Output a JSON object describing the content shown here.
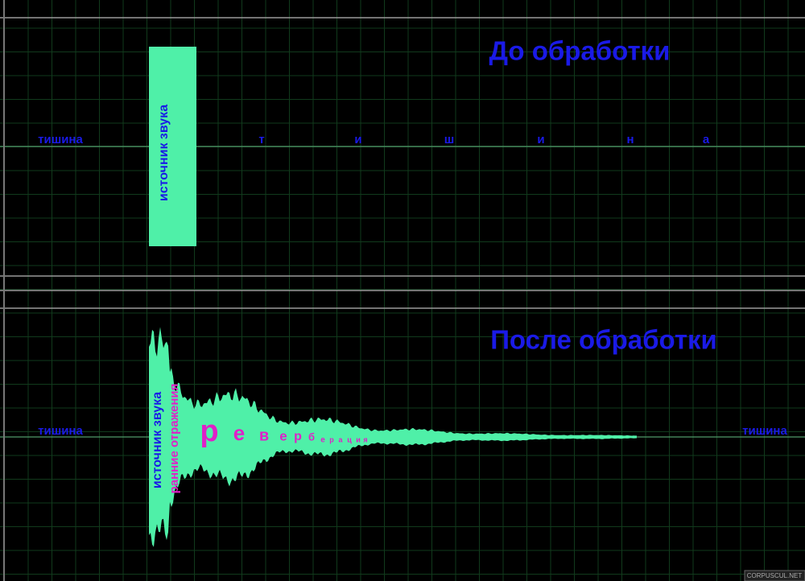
{
  "top_panel": {
    "title": "До обработки",
    "silence_left": "тишина",
    "source": "источник звука",
    "spaced_silence": [
      "т",
      "и",
      "ш",
      "и",
      "н",
      "а"
    ]
  },
  "bottom_panel": {
    "title": "После обработки",
    "silence_left": "тишина",
    "silence_right": "тишина",
    "source": "источник звука",
    "early_reflections": "ранние отражения",
    "reverb_letters": [
      "р",
      "е",
      "в",
      "е",
      "р",
      "б",
      "е",
      "р",
      "а",
      "ц",
      "и",
      "я"
    ]
  },
  "watermark": "CORPUSCUL.NET"
}
